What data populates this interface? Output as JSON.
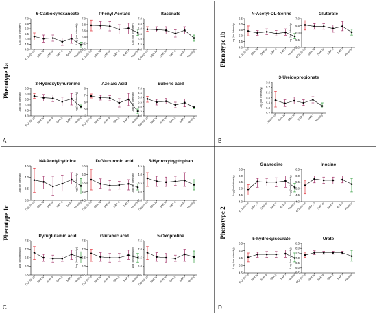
{
  "colors": {
    "covid": "#e0323c",
    "sars": "#a4356a",
    "healthy": "#2e9b3a",
    "line": "#000000",
    "divider": "#222222"
  },
  "ylabel": "Log (Ion Intensity)",
  "groups": [
    "COVID-19",
    "SAR IV",
    "SAR III",
    "SAR II",
    "SAR I",
    "Healthy"
  ],
  "phenotypes": {
    "p1a": "Phenotype 1a",
    "p1b": "Phenotype 1b",
    "p1c": "Phenotype 1c",
    "p2": "Phenotype 2"
  },
  "corner_labels": {
    "a": "A",
    "b": "B",
    "c": "C",
    "d": "D"
  },
  "chart_data": [
    {
      "type": "line",
      "title": "6-Carboxyhexanoate",
      "ylim": [
        4,
        7
      ],
      "yticks": [
        "4.0",
        "4.5",
        "5.0",
        "5.5",
        "6.0",
        "6.5",
        "7.0"
      ],
      "values": [
        5.25,
        5.05,
        5.1,
        4.75,
        5.05,
        4.45
      ],
      "errors": [
        [
          4.9,
          5.6
        ],
        [
          4.7,
          5.4
        ],
        [
          4.8,
          5.4
        ],
        [
          4.4,
          5.1
        ],
        [
          4.6,
          5.5
        ],
        [
          4.2,
          4.7
        ]
      ]
    },
    {
      "type": "line",
      "title": "Phenyl Acetate",
      "ylim": [
        6,
        7
      ],
      "yticks": [
        "6.0",
        "6.2",
        "6.4",
        "6.6",
        "6.8",
        "7.0"
      ],
      "values": [
        6.78,
        6.77,
        6.75,
        6.65,
        6.68,
        6.55
      ],
      "errors": [
        [
          6.6,
          6.95
        ],
        [
          6.65,
          6.9
        ],
        [
          6.6,
          6.9
        ],
        [
          6.5,
          6.8
        ],
        [
          6.5,
          6.85
        ],
        [
          6.45,
          6.65
        ]
      ]
    },
    {
      "type": "line",
      "title": "Itaconate",
      "ylim": [
        4,
        7
      ],
      "yticks": [
        "4.0",
        "4.5",
        "5.0",
        "5.5",
        "6.0",
        "6.5",
        "7.0"
      ],
      "values": [
        5.95,
        5.92,
        5.85,
        5.55,
        5.85,
        5.1
      ],
      "errors": [
        [
          5.75,
          6.2
        ],
        [
          5.7,
          6.2
        ],
        [
          5.5,
          6.2
        ],
        [
          5.2,
          5.9
        ],
        [
          5.5,
          6.2
        ],
        [
          4.8,
          5.4
        ]
      ]
    },
    {
      "type": "line",
      "title": "N-Acetyl-DL-Serine",
      "ylim": [
        4,
        6.5
      ],
      "yticks": [
        "4.0",
        "4.5",
        "5.0",
        "5.5",
        "6.0",
        "6.5"
      ],
      "values": [
        5.4,
        5.25,
        5.35,
        5.2,
        5.3,
        4.95
      ],
      "errors": [
        [
          5.0,
          5.85
        ],
        [
          5.05,
          5.45
        ],
        [
          5.1,
          5.6
        ],
        [
          5.0,
          5.45
        ],
        [
          5.05,
          5.6
        ],
        [
          4.75,
          5.2
        ]
      ]
    },
    {
      "type": "line",
      "title": "Glutarate",
      "ylim": [
        5,
        7
      ],
      "yticks": [
        "5.0",
        "5.5",
        "6.0",
        "6.5",
        "7.0"
      ],
      "values": [
        6.55,
        6.45,
        6.45,
        6.3,
        6.45,
        6.05
      ],
      "errors": [
        [
          6.2,
          6.85
        ],
        [
          6.25,
          6.65
        ],
        [
          6.25,
          6.65
        ],
        [
          6.05,
          6.55
        ],
        [
          6.15,
          6.8
        ],
        [
          5.85,
          6.25
        ]
      ]
    },
    {
      "type": "line",
      "title": "3-Hydroxykynurenine",
      "ylim": [
        4,
        6.5
      ],
      "yticks": [
        "4.0",
        "4.5",
        "5.0",
        "5.5",
        "6.0",
        "6.5"
      ],
      "values": [
        5.8,
        5.65,
        5.6,
        5.3,
        5.55,
        4.85
      ],
      "errors": [
        [
          5.6,
          6.05
        ],
        [
          5.35,
          5.95
        ],
        [
          5.3,
          5.9
        ],
        [
          4.9,
          5.7
        ],
        [
          5.0,
          6.05
        ],
        [
          4.7,
          5.0
        ]
      ]
    },
    {
      "type": "line",
      "title": "Azelaic Acid",
      "ylim": [
        4,
        8
      ],
      "yticks": [
        "4",
        "5",
        "6",
        "7",
        "8"
      ],
      "values": [
        6.9,
        6.65,
        6.6,
        5.9,
        6.4,
        4.65
      ],
      "errors": [
        [
          6.6,
          7.2
        ],
        [
          6.3,
          7.0
        ],
        [
          6.2,
          6.95
        ],
        [
          5.3,
          6.5
        ],
        [
          5.5,
          7.3
        ],
        [
          4.3,
          5.0
        ]
      ]
    },
    {
      "type": "line",
      "title": "Suberic acid",
      "ylim": [
        4,
        7
      ],
      "yticks": [
        "4.0",
        "4.5",
        "5.0",
        "5.5",
        "6.0",
        "6.5",
        "7.0"
      ],
      "values": [
        5.85,
        5.5,
        5.6,
        5.2,
        5.45,
        4.95
      ],
      "errors": [
        [
          5.5,
          6.15
        ],
        [
          5.2,
          5.8
        ],
        [
          5.3,
          5.9
        ],
        [
          4.9,
          5.5
        ],
        [
          5.0,
          5.85
        ],
        [
          4.8,
          5.1
        ]
      ]
    },
    {
      "type": "line",
      "title": "3-Ureidopropionate",
      "ylim": [
        5.2,
        5.8
      ],
      "yticks": [
        "5.2",
        "5.3",
        "5.4",
        "5.5",
        "5.6",
        "5.7",
        "5.8"
      ],
      "values": [
        5.45,
        5.39,
        5.44,
        5.4,
        5.46,
        5.34
      ],
      "errors": [
        [
          5.32,
          5.62
        ],
        [
          5.33,
          5.46
        ],
        [
          5.38,
          5.51
        ],
        [
          5.35,
          5.46
        ],
        [
          5.4,
          5.52
        ],
        [
          5.3,
          5.4
        ]
      ]
    },
    {
      "type": "line",
      "title": "N4-Acetylcytidine",
      "ylim": [
        3,
        4.5
      ],
      "yticks": [
        "3.0",
        "3.5",
        "4.0",
        "4.5"
      ],
      "values": [
        3.88,
        3.8,
        3.6,
        3.72,
        3.9,
        3.62
      ],
      "errors": [
        [
          3.35,
          4.4
        ],
        [
          3.5,
          4.05
        ],
        [
          3.2,
          4.05
        ],
        [
          3.4,
          4.1
        ],
        [
          3.7,
          4.2
        ],
        [
          3.3,
          3.95
        ]
      ]
    },
    {
      "type": "line",
      "title": "D-Glucuronic acid",
      "ylim": [
        4.5,
        6.5
      ],
      "yticks": [
        "4.5",
        "5.0",
        "5.5",
        "6.0",
        "6.5"
      ],
      "values": [
        5.7,
        5.45,
        5.35,
        5.38,
        5.45,
        5.25
      ],
      "errors": [
        [
          5.1,
          6.3
        ],
        [
          5.2,
          5.75
        ],
        [
          5.1,
          5.65
        ],
        [
          5.15,
          5.6
        ],
        [
          5.1,
          5.7
        ],
        [
          5.1,
          5.45
        ]
      ]
    },
    {
      "type": "line",
      "title": "5-Hydroxytryptophan",
      "ylim": [
        2.5,
        4.5
      ],
      "yticks": [
        "2.5",
        "3.0",
        "3.5",
        "4.0",
        "4.5"
      ],
      "values": [
        3.78,
        3.6,
        3.55,
        3.6,
        3.65,
        3.4
      ],
      "errors": [
        [
          3.3,
          4.1
        ],
        [
          3.3,
          3.9
        ],
        [
          3.3,
          3.85
        ],
        [
          3.35,
          3.9
        ],
        [
          3.3,
          4.1
        ],
        [
          3.1,
          3.7
        ]
      ]
    },
    {
      "type": "line",
      "title": "Pyruglutamic acid",
      "ylim": [
        5.5,
        7.5
      ],
      "yticks": [
        "5.5",
        "6.0",
        "6.5",
        "7.0",
        "7.5"
      ],
      "values": [
        6.8,
        6.5,
        6.45,
        6.45,
        6.7,
        6.5
      ],
      "errors": [
        [
          6.4,
          7.15
        ],
        [
          6.3,
          6.7
        ],
        [
          6.25,
          6.65
        ],
        [
          6.3,
          6.6
        ],
        [
          6.4,
          6.95
        ],
        [
          6.2,
          6.85
        ]
      ]
    },
    {
      "type": "line",
      "title": "Glutamic acid",
      "ylim": [
        5.5,
        7.5
      ],
      "yticks": [
        "5.5",
        "6.0",
        "6.5",
        "7.0",
        "7.5"
      ],
      "values": [
        6.75,
        6.55,
        6.5,
        6.5,
        6.65,
        6.5
      ],
      "errors": [
        [
          6.3,
          7.0
        ],
        [
          6.3,
          6.8
        ],
        [
          6.25,
          6.75
        ],
        [
          6.3,
          6.75
        ],
        [
          6.4,
          6.95
        ],
        [
          6.25,
          6.75
        ]
      ]
    },
    {
      "type": "line",
      "title": "5-Oxoproline",
      "ylim": [
        5.5,
        7.5
      ],
      "yticks": [
        "5.5",
        "6.0",
        "6.5",
        "7.0",
        "7.5"
      ],
      "values": [
        6.8,
        6.55,
        6.5,
        6.45,
        6.7,
        6.55
      ],
      "errors": [
        [
          6.4,
          7.15
        ],
        [
          6.3,
          6.8
        ],
        [
          6.25,
          6.75
        ],
        [
          6.3,
          6.65
        ],
        [
          6.3,
          7.0
        ],
        [
          6.2,
          6.9
        ]
      ]
    },
    {
      "type": "line",
      "title": "Guanosine",
      "ylim": [
        4,
        6.5
      ],
      "yticks": [
        "4.0",
        "4.5",
        "5.0",
        "5.5",
        "6.0",
        "6.5"
      ],
      "values": [
        4.95,
        5.55,
        5.5,
        5.5,
        5.6,
        5.1
      ],
      "errors": [
        [
          4.5,
          5.3
        ],
        [
          5.1,
          5.8
        ],
        [
          5.2,
          5.8
        ],
        [
          5.15,
          5.85
        ],
        [
          5.1,
          6.0
        ],
        [
          4.75,
          5.4
        ]
      ]
    },
    {
      "type": "line",
      "title": "Inosine",
      "ylim": [
        4,
        6.5
      ],
      "yticks": [
        "4.0",
        "4.5",
        "5.0",
        "5.5",
        "6.0",
        "6.5"
      ],
      "values": [
        5.25,
        5.75,
        5.65,
        5.65,
        5.7,
        5.35
      ],
      "errors": [
        [
          4.6,
          5.65
        ],
        [
          5.45,
          6.0
        ],
        [
          5.4,
          5.9
        ],
        [
          5.35,
          5.9
        ],
        [
          5.45,
          6.0
        ],
        [
          4.75,
          5.8
        ]
      ]
    },
    {
      "type": "line",
      "title": "5-hydroxyisourate",
      "ylim": [
        4.5,
        6.5
      ],
      "yticks": [
        "4.5",
        "5.0",
        "5.5",
        "6.0",
        "6.5"
      ],
      "values": [
        5.55,
        5.75,
        5.75,
        5.75,
        5.8,
        5.5
      ],
      "errors": [
        [
          5.25,
          5.85
        ],
        [
          5.55,
          5.9
        ],
        [
          5.55,
          5.95
        ],
        [
          5.55,
          5.95
        ],
        [
          5.55,
          6.05
        ],
        [
          5.25,
          5.85
        ]
      ]
    },
    {
      "type": "line",
      "title": "Urate",
      "ylim": [
        5.5,
        8.5
      ],
      "yticks": [
        "5.5",
        "6.0",
        "6.5",
        "7.0",
        "7.5",
        "8.0",
        "8.5"
      ],
      "values": [
        7.3,
        7.55,
        7.55,
        7.55,
        7.55,
        7.2
      ],
      "errors": [
        [
          7.05,
          7.6
        ],
        [
          7.35,
          7.75
        ],
        [
          7.4,
          7.7
        ],
        [
          7.4,
          7.7
        ],
        [
          7.4,
          7.7
        ],
        [
          6.7,
          7.8
        ]
      ]
    }
  ]
}
